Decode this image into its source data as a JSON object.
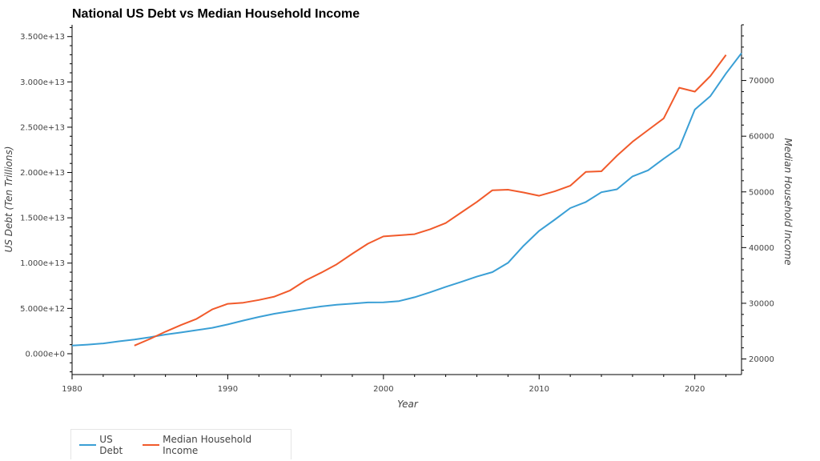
{
  "chart_data": {
    "type": "line",
    "title": "National US Debt vs Median Household Income",
    "xlabel": "Year",
    "ylabel_left": "US Debt (Ten Trillions)",
    "ylabel_right": "Median Household Income",
    "xlim": [
      1980,
      2023
    ],
    "ylim_left": [
      -2300000000000.0,
      36300000000000.0
    ],
    "ylim_right": [
      17200,
      80000
    ],
    "x_ticks": [
      1980,
      1990,
      2000,
      2010,
      2020
    ],
    "x_tick_labels": [
      "1980",
      "1990",
      "2000",
      "2010",
      "2020"
    ],
    "y_left_ticks": [
      0,
      5000000000000.0,
      10000000000000.0,
      15000000000000.0,
      20000000000000.0,
      25000000000000.0,
      30000000000000.0,
      35000000000000.0
    ],
    "y_left_tick_labels": [
      "0.000e+0",
      "5.000e+12",
      "1.000e+13",
      "1.500e+13",
      "2.000e+13",
      "2.500e+13",
      "3.000e+13",
      "3.500e+13"
    ],
    "y_right_ticks": [
      20000,
      30000,
      40000,
      50000,
      60000,
      70000
    ],
    "y_right_tick_labels": [
      "20000",
      "30000",
      "40000",
      "50000",
      "60000",
      "70000"
    ],
    "grid": false,
    "legend_position": "bottom-left",
    "series": [
      {
        "name": "US Debt",
        "axis": "left",
        "color": "#3a9fd5",
        "x": [
          1980,
          1981,
          1982,
          1983,
          1984,
          1985,
          1986,
          1987,
          1988,
          1989,
          1990,
          1991,
          1992,
          1993,
          1994,
          1995,
          1996,
          1997,
          1998,
          1999,
          2000,
          2001,
          2002,
          2003,
          2004,
          2005,
          2006,
          2007,
          2008,
          2009,
          2010,
          2011,
          2012,
          2013,
          2014,
          2015,
          2016,
          2017,
          2018,
          2019,
          2020,
          2021,
          2022,
          2023
        ],
        "values": [
          910000000000.0,
          1000000000000.0,
          1140000000000.0,
          1370000000000.0,
          1560000000000.0,
          1820000000000.0,
          2120000000000.0,
          2350000000000.0,
          2600000000000.0,
          2860000000000.0,
          3230000000000.0,
          3660000000000.0,
          4060000000000.0,
          4410000000000.0,
          4690000000000.0,
          4970000000000.0,
          5220000000000.0,
          5410000000000.0,
          5530000000000.0,
          5660000000000.0,
          5670000000000.0,
          5810000000000.0,
          6230000000000.0,
          6780000000000.0,
          7380000000000.0,
          7930000000000.0,
          8510000000000.0,
          9010000000000.0,
          10030000000000.0,
          11910000000000.0,
          13560000000000.0,
          14790000000000.0,
          16070000000000.0,
          16740000000000.0,
          17820000000000.0,
          18150000000000.0,
          19570000000000.0,
          20240000000000.0,
          21520000000000.0,
          22720000000000.0,
          26950000000000.0,
          28430000000000.0,
          30930000000000.0,
          33170000000000.0
        ]
      },
      {
        "name": "Median Household Income",
        "axis": "right",
        "color": "#f15a2b",
        "x": [
          1984,
          1985,
          1986,
          1987,
          1988,
          1989,
          1990,
          1991,
          1992,
          1993,
          1994,
          1995,
          1996,
          1997,
          1998,
          1999,
          2000,
          2001,
          2002,
          2003,
          2004,
          2005,
          2006,
          2007,
          2008,
          2009,
          2010,
          2011,
          2012,
          2013,
          2014,
          2015,
          2016,
          2017,
          2018,
          2019,
          2020,
          2021,
          2022
        ],
        "values": [
          22400,
          23600,
          24900,
          26100,
          27200,
          28900,
          29900,
          30100,
          30600,
          31200,
          32300,
          34100,
          35500,
          37000,
          38900,
          40700,
          42000,
          42200,
          42400,
          43300,
          44400,
          46300,
          48200,
          50300,
          50400,
          49900,
          49300,
          50100,
          51100,
          53600,
          53700,
          56500,
          59000,
          61100,
          63200,
          68700,
          68000,
          70800,
          74600
        ]
      }
    ]
  }
}
